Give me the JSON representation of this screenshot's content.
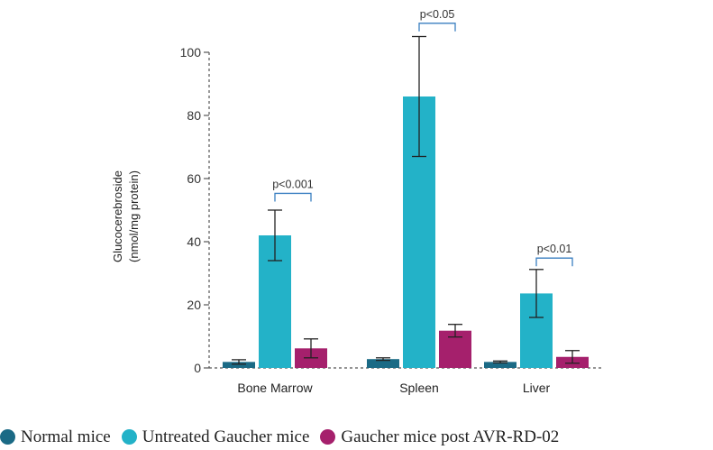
{
  "chart_data": {
    "type": "bar",
    "title": "",
    "xlabel": "",
    "ylabel_line1": "Glucocerebroside",
    "ylabel_line2": "(nmol/mg protein)",
    "ylim": [
      0,
      100
    ],
    "yticks": [
      0,
      20,
      40,
      60,
      80,
      100
    ],
    "grid": false,
    "categories": [
      "Bone Marrow",
      "Spleen",
      "Liver"
    ],
    "series": [
      {
        "name": "Normal mice",
        "color": "#1b6a85",
        "values": [
          1.9,
          2.8,
          1.9
        ],
        "errors": [
          0.7,
          0.4,
          0.3
        ]
      },
      {
        "name": "Untreated Gaucher mice",
        "color": "#23b2c8",
        "values": [
          42,
          86,
          23.6
        ],
        "errors": [
          8,
          19,
          7.6
        ]
      },
      {
        "name": "Gaucher mice post AVR-RD-02",
        "color": "#a5206c",
        "values": [
          6.2,
          11.8,
          3.5
        ],
        "errors": [
          3,
          2,
          2
        ]
      }
    ],
    "annotations": [
      {
        "category": "Bone Marrow",
        "text": "p<0.001",
        "y": 55.3
      },
      {
        "category": "Spleen",
        "text": "p<0.05",
        "y": 109.2
      },
      {
        "category": "Liver",
        "text": "p<0.01",
        "y": 34.8
      }
    ],
    "legend_position": "bottom"
  }
}
